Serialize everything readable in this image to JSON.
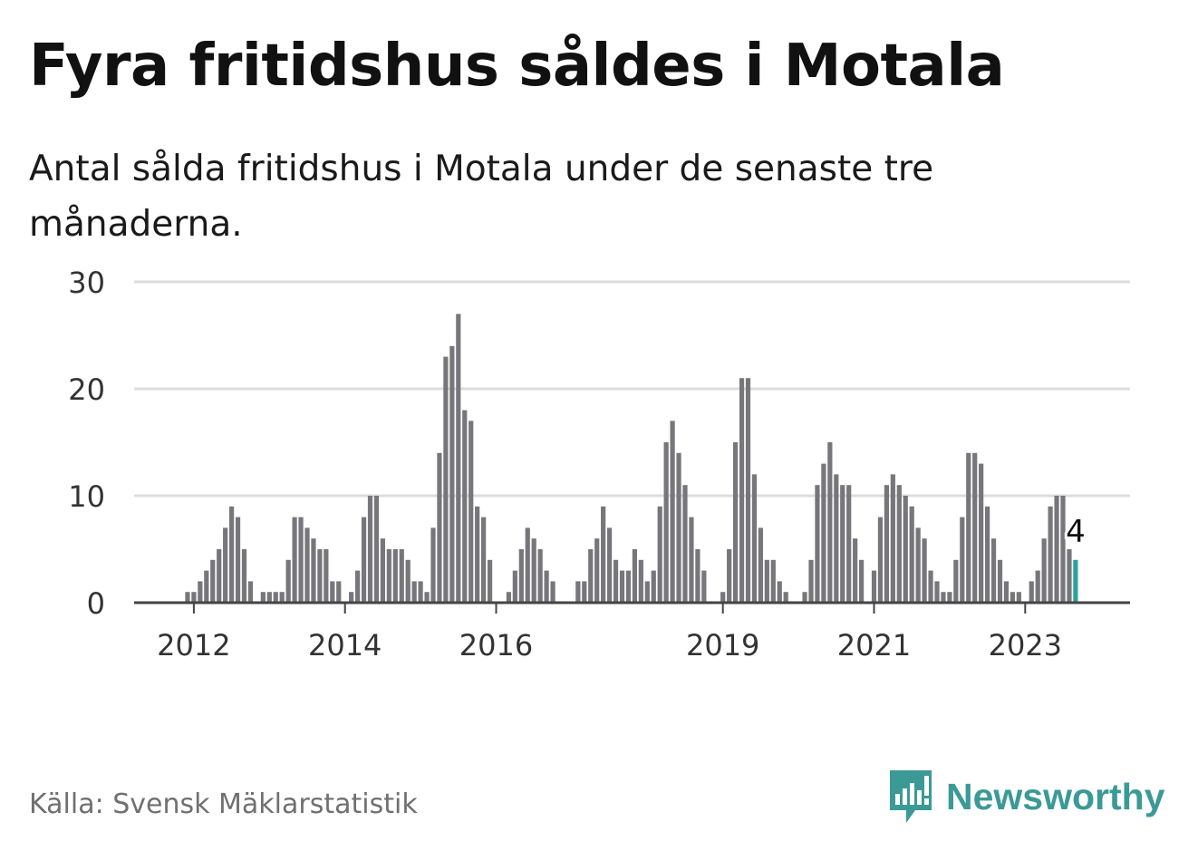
{
  "title": "Fyra fritidshus såldes i Motala",
  "subtitle": "Antal sålda fritidshus i Motala under de senaste tre månaderna.",
  "source": "Källa: Svensk Mäklarstatistik",
  "brand": {
    "name": "Newsworthy",
    "icon": "newsworthy-logo-icon"
  },
  "colors": {
    "bar": "#77767b",
    "highlight": "#2aa39c",
    "grid": "#dddddd",
    "axis": "#444444",
    "brand": "#3b9a96"
  },
  "chart_data": {
    "type": "bar",
    "title": "Fyra fritidshus såldes i Motala",
    "subtitle": "Antal sålda fritidshus i Motala under de senaste tre månaderna.",
    "xlabel": "",
    "ylabel": "",
    "ylim": [
      0,
      30
    ],
    "yticks": [
      "0",
      "10",
      "20",
      "30"
    ],
    "xticks": [
      "2012",
      "2014",
      "2016",
      "2019",
      "2021",
      "2023"
    ],
    "grid": true,
    "start": "2011-11",
    "frequency": "monthly",
    "values": [
      0,
      1,
      1,
      2,
      3,
      4,
      5,
      7,
      9,
      8,
      5,
      2,
      0,
      1,
      1,
      1,
      1,
      4,
      8,
      8,
      7,
      6,
      5,
      5,
      2,
      2,
      0,
      1,
      3,
      8,
      10,
      10,
      6,
      5,
      5,
      5,
      4,
      2,
      2,
      1,
      7,
      14,
      23,
      24,
      27,
      18,
      17,
      9,
      8,
      4,
      0,
      0,
      1,
      3,
      5,
      7,
      6,
      5,
      3,
      2,
      0,
      0,
      0,
      2,
      2,
      5,
      6,
      9,
      7,
      4,
      3,
      3,
      5,
      4,
      2,
      3,
      9,
      15,
      17,
      14,
      11,
      8,
      5,
      3,
      0,
      0,
      1,
      5,
      15,
      21,
      21,
      12,
      7,
      4,
      4,
      2,
      1,
      0,
      0,
      1,
      4,
      11,
      13,
      15,
      12,
      11,
      11,
      6,
      4,
      0,
      3,
      8,
      11,
      12,
      11,
      10,
      9,
      7,
      6,
      3,
      2,
      1,
      1,
      4,
      8,
      14,
      14,
      13,
      9,
      6,
      4,
      2,
      1,
      1,
      0,
      2,
      3,
      6,
      9,
      10,
      10,
      5,
      4
    ],
    "last_value_label": "4"
  }
}
